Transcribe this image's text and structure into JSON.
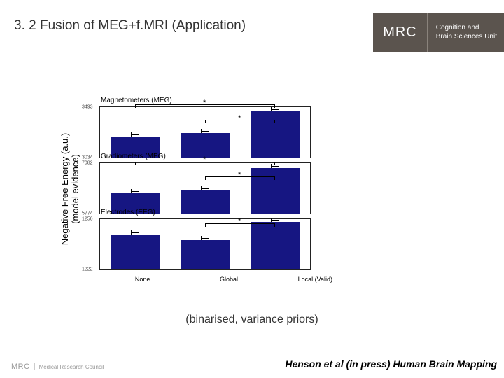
{
  "title": "3. 2 Fusion of MEG+f.MRI (Application)",
  "logo": {
    "main": "MRC",
    "line1": "Cognition and",
    "line2": "Brain Sciences Unit"
  },
  "ylabel_line1": "Negative Free Energy (a.u.)",
  "ylabel_line2": "(model evidence)",
  "panels": [
    {
      "label": "Magnetometers (MEG)",
      "ymax": 3493,
      "ymin": 3034,
      "bar_color": "#161682",
      "bars": [
        {
          "h": 42,
          "err": true
        },
        {
          "h": 48,
          "err": true
        },
        {
          "h": 92,
          "err": true
        }
      ],
      "sig": [
        {
          "from": 1,
          "to": 2,
          "y": 68,
          "star": "*"
        },
        {
          "from": 0,
          "to": 2,
          "y": 98,
          "star": "*"
        }
      ]
    },
    {
      "label": "Gradiometers (MEG)",
      "ymax": 7082,
      "ymin": 5774,
      "bar_color": "#161682",
      "bars": [
        {
          "h": 40,
          "err": true
        },
        {
          "h": 46,
          "err": true
        },
        {
          "h": 90,
          "err": true
        }
      ],
      "sig": [
        {
          "from": 1,
          "to": 2,
          "y": 66,
          "star": "*"
        },
        {
          "from": 0,
          "to": 2,
          "y": 96,
          "star": "*"
        }
      ]
    },
    {
      "label": "Electrodes (EEG)",
      "ymax": 1256,
      "ymin": 1222,
      "bar_color": "#161682",
      "bars": [
        {
          "h": 70,
          "err": true
        },
        {
          "h": 58,
          "err": true
        },
        {
          "h": 94,
          "err": true
        }
      ],
      "sig": [
        {
          "from": 1,
          "to": 2,
          "y": 85,
          "star": "*"
        }
      ]
    }
  ],
  "xlabels": [
    "None",
    "Global",
    "Local (Valid)"
  ],
  "subtitle": "(binarised, variance priors)",
  "citation": "Henson et al (in press) Human Brain Mapping",
  "footer": {
    "mrc": "MRC",
    "text": "Medical Research Council"
  }
}
